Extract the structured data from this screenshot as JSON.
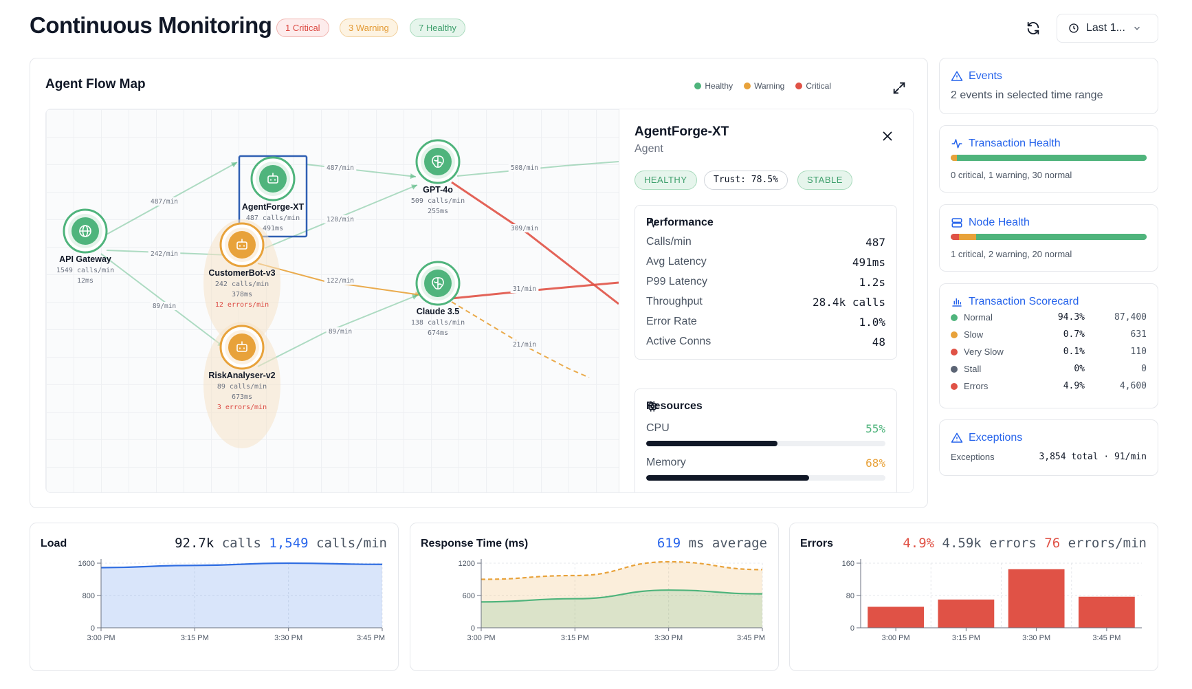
{
  "header": {
    "title": "Continuous Monitoring",
    "badges": {
      "critical": "1 Critical",
      "warning": "3 Warning",
      "healthy": "7 Healthy"
    },
    "time_range": "Last 1..."
  },
  "colors": {
    "healthy": "#4fb47c",
    "warning": "#e8a23a",
    "critical": "#e05246",
    "accent": "#2563eb"
  },
  "flow_map": {
    "title": "Agent Flow Map",
    "legend": [
      "Healthy",
      "Warning",
      "Critical"
    ],
    "nodes": [
      {
        "id": "gateway",
        "name": "API Gateway",
        "calls": "1549 calls/min",
        "latency": "12ms",
        "errors": "",
        "status": "healthy",
        "icon": "globe-icon"
      },
      {
        "id": "agentforge",
        "name": "AgentForge-XT",
        "calls": "487 calls/min",
        "latency": "491ms",
        "errors": "",
        "status": "healthy",
        "icon": "bot-icon",
        "selected": true
      },
      {
        "id": "customerbot",
        "name": "CustomerBot-v3",
        "calls": "242 calls/min",
        "latency": "378ms",
        "errors": "12 errors/min",
        "status": "warning",
        "icon": "bot-icon"
      },
      {
        "id": "riskanalyser",
        "name": "RiskAnalyser-v2",
        "calls": "89 calls/min",
        "latency": "673ms",
        "errors": "3 errors/min",
        "status": "warning",
        "icon": "bot-icon"
      },
      {
        "id": "gpt4o",
        "name": "GPT-4o",
        "calls": "509 calls/min",
        "latency": "255ms",
        "errors": "",
        "status": "healthy",
        "icon": "brain-icon"
      },
      {
        "id": "claude",
        "name": "Claude 3.5",
        "calls": "138 calls/min",
        "latency": "674ms",
        "errors": "",
        "status": "healthy",
        "icon": "brain-icon"
      }
    ],
    "edges": [
      {
        "from": "gateway",
        "to": "agentforge",
        "label": "487/min",
        "status": "healthy"
      },
      {
        "from": "gateway",
        "to": "customerbot",
        "label": "242/min",
        "status": "healthy"
      },
      {
        "from": "gateway",
        "to": "riskanalyser",
        "label": "89/min",
        "status": "healthy"
      },
      {
        "from": "agentforge",
        "to": "gpt4o",
        "label": "487/min",
        "status": "healthy"
      },
      {
        "from": "customerbot",
        "to": "gpt4o",
        "label": "120/min",
        "status": "healthy"
      },
      {
        "from": "customerbot",
        "to": "claude",
        "label": "122/min",
        "status": "warning"
      },
      {
        "from": "riskanalyser",
        "to": "claude",
        "label": "89/min",
        "status": "healthy"
      },
      {
        "from": "gpt4o",
        "to": "offscreen",
        "label": "508/min",
        "status": "healthy"
      },
      {
        "from": "gpt4o",
        "to": "offscreen",
        "label": "309/min",
        "status": "critical"
      },
      {
        "from": "claude",
        "to": "offscreen",
        "label": "31/min",
        "status": "critical"
      },
      {
        "from": "claude",
        "to": "offscreen",
        "label": "21/min",
        "status": "warning"
      }
    ]
  },
  "details": {
    "title": "AgentForge-XT",
    "subtitle": "Agent",
    "chips": {
      "status": "HEALTHY",
      "trust": "Trust: 78.5%",
      "stability": "STABLE"
    },
    "performance": {
      "title": "Performance",
      "rows": [
        {
          "k": "Calls/min",
          "v": "487"
        },
        {
          "k": "Avg Latency",
          "v": "491ms"
        },
        {
          "k": "P99 Latency",
          "v": "1.2s"
        },
        {
          "k": "Throughput",
          "v": "28.4k calls"
        },
        {
          "k": "Error Rate",
          "v": "1.0%"
        },
        {
          "k": "Active Conns",
          "v": "48"
        }
      ]
    },
    "resources": {
      "title": "Resources",
      "cpu_label": "CPU",
      "cpu_value": "55%",
      "cpu_fraction": 0.55,
      "memory_label": "Memory",
      "memory_value": "68%",
      "memory_fraction": 0.68
    }
  },
  "side": {
    "events": {
      "title": "Events",
      "text": "2 events in selected time range"
    },
    "transaction_health": {
      "title": "Transaction Health",
      "text": "0 critical, 1 warning, 30 normal",
      "critical": 0,
      "warning": 1,
      "normal": 30
    },
    "node_health": {
      "title": "Node Health",
      "text": "1 critical, 2 warning, 20 normal",
      "critical": 1,
      "warning": 2,
      "normal": 20
    },
    "scorecard": {
      "title": "Transaction Scorecard",
      "rows": [
        {
          "label": "Normal",
          "pct": "94.3%",
          "count": "87,400",
          "color": "#4fb47c"
        },
        {
          "label": "Slow",
          "pct": "0.7%",
          "count": "631",
          "color": "#e8a23a"
        },
        {
          "label": "Very Slow",
          "pct": "0.1%",
          "count": "110",
          "color": "#e05246"
        },
        {
          "label": "Stall",
          "pct": "0%",
          "count": "0",
          "color": "#5b6474"
        },
        {
          "label": "Errors",
          "pct": "4.9%",
          "count": "4,600",
          "color": "#e05246"
        }
      ]
    },
    "exceptions": {
      "title": "Exceptions",
      "label": "Exceptions",
      "value": "3,854 total · 91/min"
    }
  },
  "charts": {
    "load": {
      "title": "Load",
      "stat_value": "92.7k",
      "stat_unit": "calls",
      "rate_value": "1,549",
      "rate_unit": "calls/min"
    },
    "response": {
      "title": "Response Time (ms)",
      "stat_value": "619",
      "stat_unit": "ms average"
    },
    "errors": {
      "title": "Errors",
      "pct": "4.9%",
      "stat_value": "4.59k errors",
      "rate_value": "76",
      "rate_unit": "errors/min"
    }
  },
  "chart_data": [
    {
      "type": "area",
      "title": "Load",
      "x": [
        "3:00 PM",
        "3:15 PM",
        "3:30 PM",
        "3:45 PM"
      ],
      "yticks": [
        "0",
        "800",
        "1600"
      ],
      "ylim": [
        0,
        1600
      ],
      "series": [
        {
          "values": [
            1490,
            1545,
            1600,
            1570
          ],
          "color": "#2f6de1"
        }
      ]
    },
    {
      "type": "area",
      "title": "Response Time (ms)",
      "x": [
        "3:00 PM",
        "3:15 PM",
        "3:30 PM",
        "3:45 PM"
      ],
      "yticks": [
        "0",
        "600",
        "1200"
      ],
      "ylim": [
        0,
        1200
      ],
      "series": [
        {
          "values": [
            480,
            540,
            700,
            630
          ],
          "color": "#4fb47c",
          "style": "solid"
        },
        {
          "values": [
            900,
            970,
            1230,
            1080
          ],
          "color": "#e8a23a",
          "style": "dashed"
        }
      ]
    },
    {
      "type": "bar",
      "title": "Errors",
      "categories": [
        "3:00 PM",
        "3:15 PM",
        "3:30 PM",
        "3:45 PM"
      ],
      "yticks": [
        "0",
        "80",
        "160"
      ],
      "ylim": [
        0,
        160
      ],
      "values": [
        52,
        70,
        145,
        77
      ],
      "color": "#e05246"
    }
  ]
}
